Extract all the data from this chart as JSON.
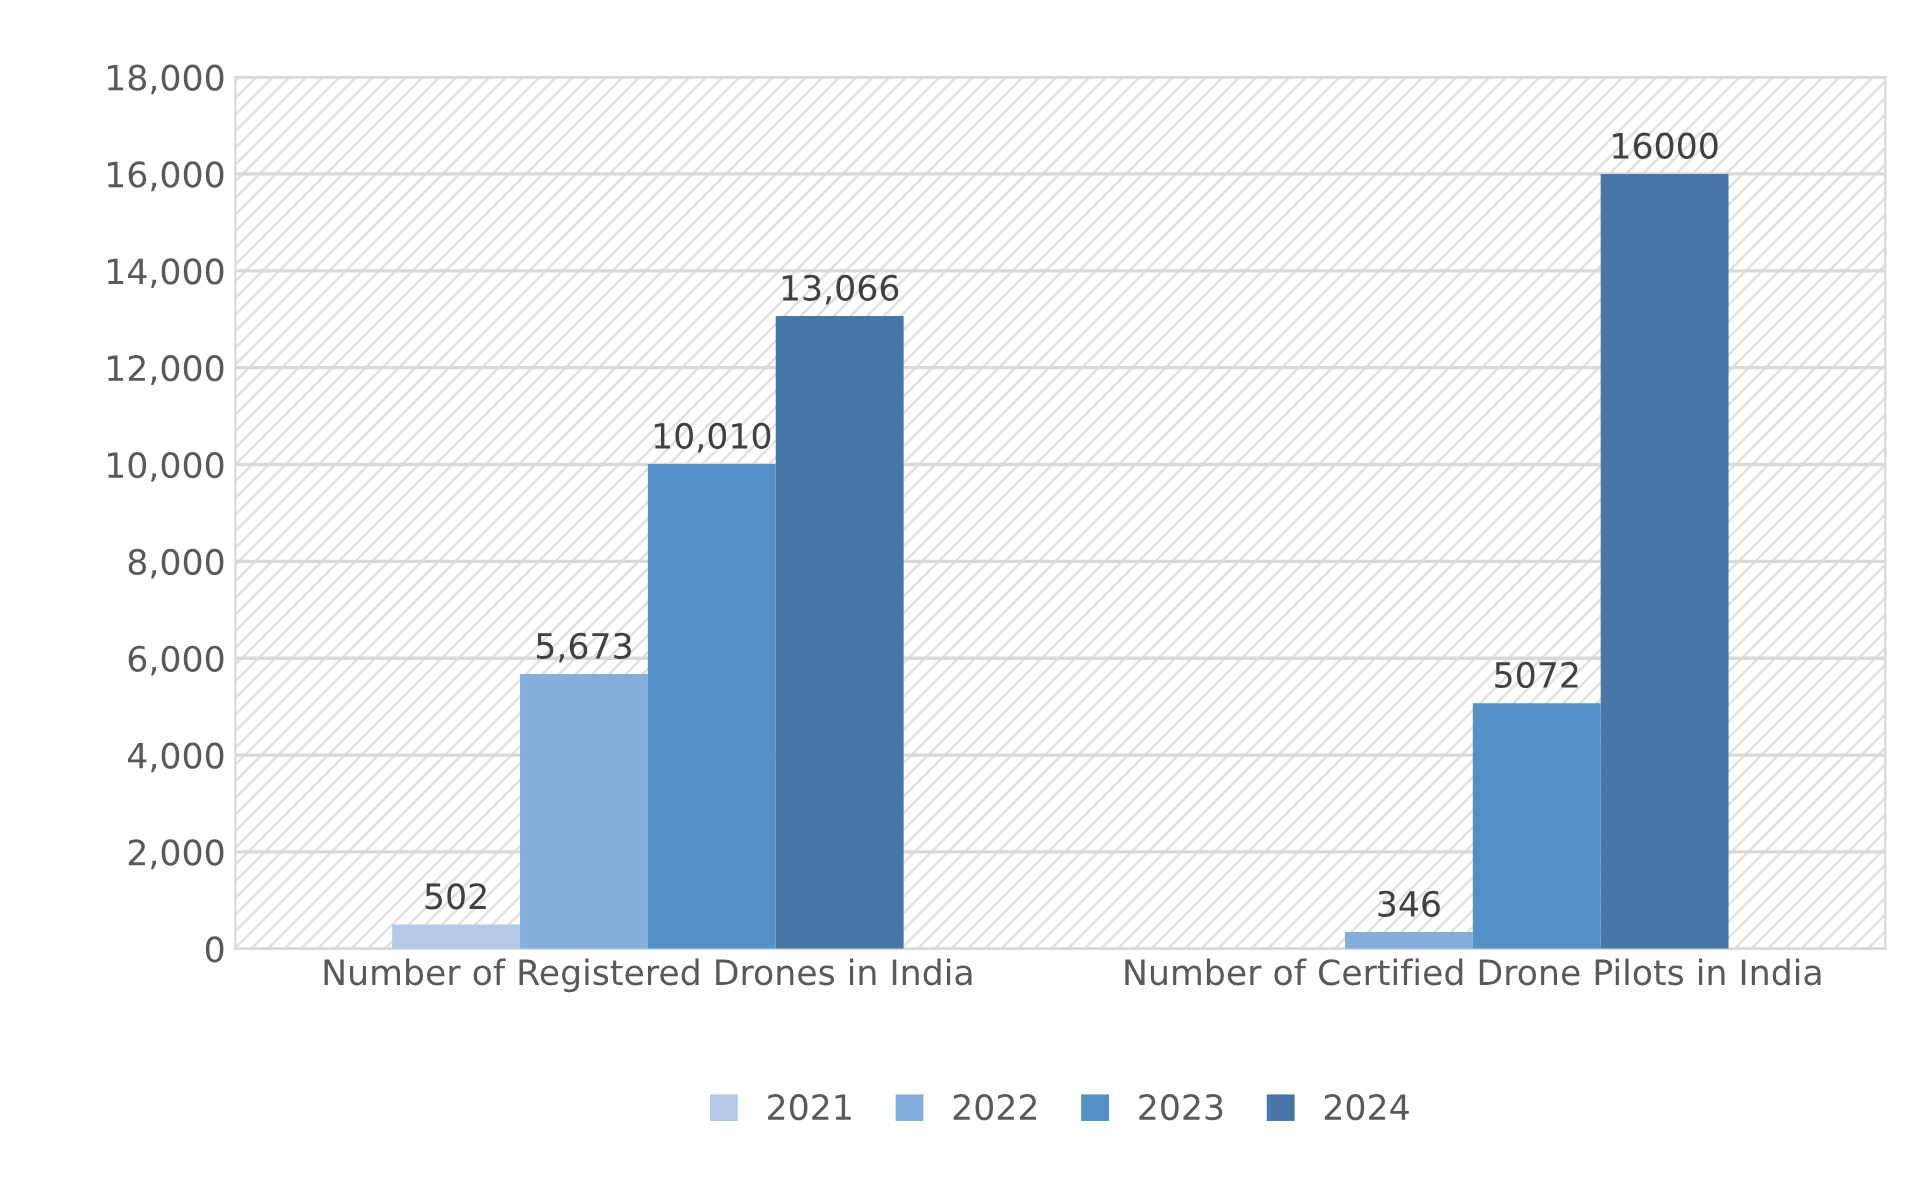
{
  "chart_data": {
    "type": "bar",
    "categories": [
      "Number of Registered Drones in India",
      "Number of Certified Drone Pilots in India"
    ],
    "series": [
      {
        "name": "2021",
        "color": "#b4c9e6",
        "values": [
          502,
          null
        ],
        "value_labels": [
          "502",
          null
        ]
      },
      {
        "name": "2022",
        "color": "#86aedc",
        "values": [
          5673,
          346
        ],
        "value_labels": [
          "5,673",
          "346"
        ]
      },
      {
        "name": "2023",
        "color": "#5390c8",
        "values": [
          10010,
          5072
        ],
        "value_labels": [
          "10,010",
          "5072"
        ]
      },
      {
        "name": "2024",
        "color": "#4677a7",
        "values": [
          13066,
          16000
        ],
        "value_labels": [
          "13,066",
          "16000"
        ]
      }
    ],
    "ylim": [
      0,
      18000
    ],
    "yticks": [
      {
        "value": 0,
        "label": "0"
      },
      {
        "value": 2000,
        "label": "2,000"
      },
      {
        "value": 4000,
        "label": "4,000"
      },
      {
        "value": 6000,
        "label": "6,000"
      },
      {
        "value": 8000,
        "label": "8,000"
      },
      {
        "value": 10000,
        "label": "10,000"
      },
      {
        "value": 12000,
        "label": "12,000"
      },
      {
        "value": 14000,
        "label": "14,000"
      },
      {
        "value": 16000,
        "label": "16,000"
      },
      {
        "value": 18000,
        "label": "18,000"
      }
    ],
    "grid": "y",
    "legend": "bottom"
  }
}
